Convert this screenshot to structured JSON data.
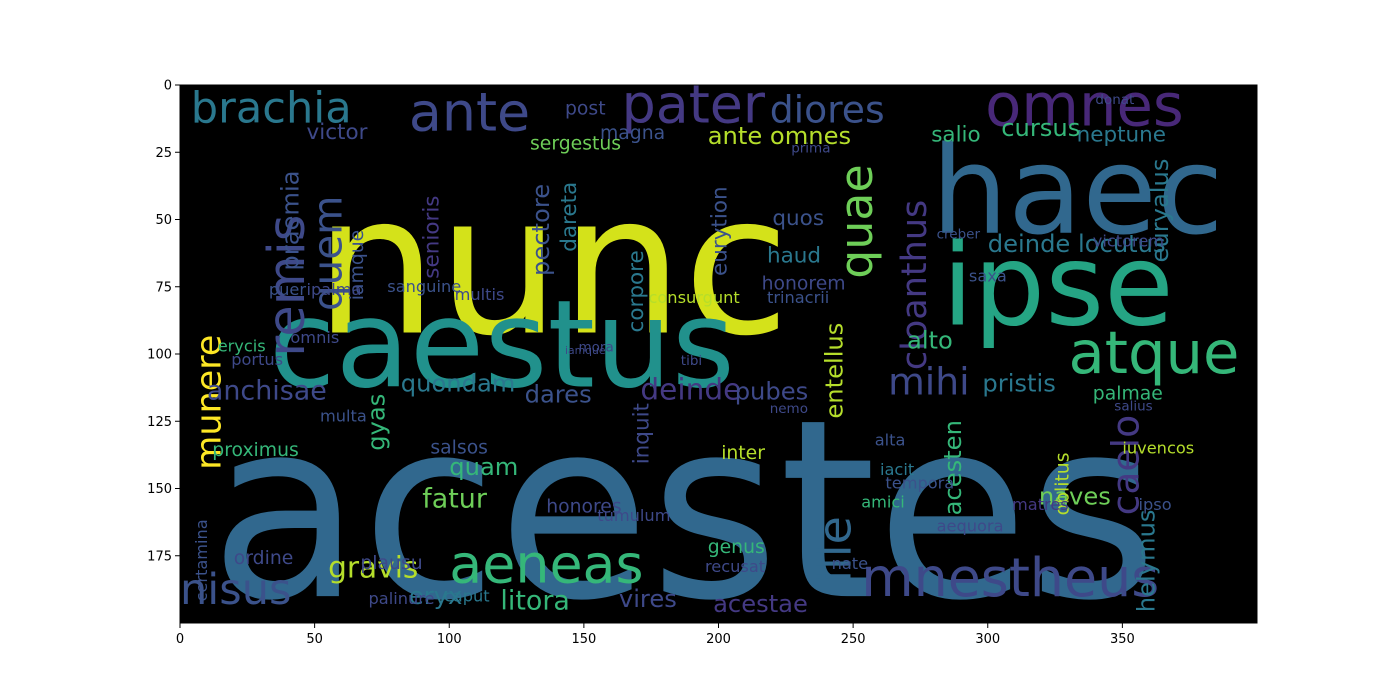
{
  "chart_data": {
    "type": "wordcloud",
    "title": "",
    "xlabel": "",
    "ylabel": "",
    "xlim": [
      0,
      400
    ],
    "ylim": [
      200,
      0
    ],
    "xticks": [
      0,
      50,
      100,
      150,
      200,
      250,
      300,
      350
    ],
    "yticks": [
      0,
      25,
      50,
      75,
      100,
      125,
      150,
      175
    ],
    "background": "#000000",
    "colormap": "viridis",
    "words": [
      {
        "text": "acestes",
        "x": 11,
        "y": 190,
        "size": 92,
        "color": "#31688e"
      },
      {
        "text": "nunc",
        "x": 50,
        "y": 92,
        "size": 72,
        "color": "#d4e21a"
      },
      {
        "text": "caestus",
        "x": 33,
        "y": 112,
        "size": 45,
        "color": "#21918c"
      },
      {
        "text": "haec",
        "x": 279,
        "y": 55,
        "size": 45,
        "color": "#31688e"
      },
      {
        "text": "ipse",
        "x": 283,
        "y": 89,
        "size": 42,
        "color": "#25a584"
      },
      {
        "text": "omnes",
        "x": 299,
        "y": 15,
        "size": 22,
        "color": "#482878"
      },
      {
        "text": "pater",
        "x": 164,
        "y": 14,
        "size": 20,
        "color": "#443983"
      },
      {
        "text": "ante",
        "x": 85,
        "y": 17,
        "size": 20,
        "color": "#3e4989"
      },
      {
        "text": "brachia",
        "x": 4,
        "y": 14,
        "size": 16,
        "color": "#2a788e"
      },
      {
        "text": "diores",
        "x": 219,
        "y": 14,
        "size": 14,
        "color": "#3b528b"
      },
      {
        "text": "atque",
        "x": 330,
        "y": 107,
        "size": 22,
        "color": "#35b779"
      },
      {
        "text": "mnestheus",
        "x": 253,
        "y": 190,
        "size": 20,
        "color": "#3e4989"
      },
      {
        "text": "aeneas",
        "x": 100,
        "y": 185,
        "size": 20,
        "color": "#35b779"
      },
      {
        "text": "nisus",
        "x": 0,
        "y": 193,
        "size": 16,
        "color": "#3b528b"
      },
      {
        "text": "mihi",
        "x": 263,
        "y": 115,
        "size": 14,
        "color": "#3e4989"
      },
      {
        "text": "quae",
        "x": 257,
        "y": 72,
        "size": 17,
        "color": "#6ece58",
        "rotate": true
      },
      {
        "text": "remis",
        "x": 46,
        "y": 101,
        "size": 19,
        "color": "#3e4989",
        "rotate": true
      },
      {
        "text": "quem",
        "x": 60,
        "y": 84,
        "size": 15,
        "color": "#3b528b",
        "rotate": true
      },
      {
        "text": "ille",
        "x": 249,
        "y": 185,
        "size": 17,
        "color": "#31688e",
        "rotate": true
      },
      {
        "text": "cloanthus",
        "x": 277,
        "y": 106,
        "size": 13,
        "color": "#443983",
        "rotate": true
      },
      {
        "text": "caelo",
        "x": 356,
        "y": 160,
        "size": 14,
        "color": "#443983",
        "rotate": true
      },
      {
        "text": "munere",
        "x": 15,
        "y": 143,
        "size": 13,
        "color": "#fde725",
        "rotate": true
      },
      {
        "text": "praemia",
        "x": 44,
        "y": 69,
        "size": 9,
        "color": "#3b528b",
        "rotate": true
      },
      {
        "text": "anchisae",
        "x": 10,
        "y": 117,
        "size": 10,
        "color": "#3e4989"
      },
      {
        "text": "quondam",
        "x": 82,
        "y": 114,
        "size": 9,
        "color": "#2a788e"
      },
      {
        "text": "deinde",
        "x": 171,
        "y": 117,
        "size": 11,
        "color": "#443983"
      },
      {
        "text": "dares",
        "x": 128,
        "y": 118,
        "size": 9,
        "color": "#3b528b"
      },
      {
        "text": "pubes",
        "x": 206,
        "y": 117,
        "size": 9,
        "color": "#3e4989"
      },
      {
        "text": "pristis",
        "x": 298,
        "y": 114,
        "size": 9,
        "color": "#2a788e"
      },
      {
        "text": "alto",
        "x": 270,
        "y": 98,
        "size": 9,
        "color": "#35b779"
      },
      {
        "text": "entellus",
        "x": 246,
        "y": 124,
        "size": 9,
        "color": "#b5de2b",
        "rotate": true
      },
      {
        "text": "deinde locutus",
        "x": 300,
        "y": 62,
        "size": 9,
        "color": "#2a788e"
      },
      {
        "text": "euryalus",
        "x": 367,
        "y": 66,
        "size": 9,
        "color": "#2a788e",
        "rotate": true
      },
      {
        "text": "neptune",
        "x": 333,
        "y": 21,
        "size": 8,
        "color": "#2a788e"
      },
      {
        "text": "cursus",
        "x": 305,
        "y": 19,
        "size": 9,
        "color": "#35b779"
      },
      {
        "text": "salio",
        "x": 279,
        "y": 21,
        "size": 8,
        "color": "#35b779"
      },
      {
        "text": "victor",
        "x": 47,
        "y": 20,
        "size": 8,
        "color": "#3e4989"
      },
      {
        "text": "ante omnes",
        "x": 196,
        "y": 22,
        "size": 9,
        "color": "#b5de2b"
      },
      {
        "text": "magna",
        "x": 156,
        "y": 20,
        "size": 7,
        "color": "#3b528b"
      },
      {
        "text": "sergestus",
        "x": 130,
        "y": 24,
        "size": 7,
        "color": "#6ece58"
      },
      {
        "text": "post",
        "x": 143,
        "y": 11,
        "size": 7,
        "color": "#3e4989"
      },
      {
        "text": "quos",
        "x": 220,
        "y": 52,
        "size": 8,
        "color": "#3b528b"
      },
      {
        "text": "haud",
        "x": 218,
        "y": 66,
        "size": 8,
        "color": "#2a788e"
      },
      {
        "text": "honorem",
        "x": 216,
        "y": 76,
        "size": 7,
        "color": "#3e4989"
      },
      {
        "text": "senioris",
        "x": 96,
        "y": 72,
        "size": 8,
        "color": "#443983",
        "rotate": true
      },
      {
        "text": "iamque",
        "x": 68,
        "y": 80,
        "size": 7,
        "color": "#3b528b",
        "rotate": true
      },
      {
        "text": "pectore",
        "x": 137,
        "y": 71,
        "size": 9,
        "color": "#3b528b",
        "rotate": true
      },
      {
        "text": "dareta",
        "x": 147,
        "y": 62,
        "size": 8,
        "color": "#2a788e",
        "rotate": true
      },
      {
        "text": "eurytion",
        "x": 203,
        "y": 71,
        "size": 8,
        "color": "#3b528b",
        "rotate": true
      },
      {
        "text": "corpore",
        "x": 172,
        "y": 92,
        "size": 8,
        "color": "#2a788e",
        "rotate": true
      },
      {
        "text": "inquit",
        "x": 174,
        "y": 141,
        "size": 8,
        "color": "#3e4989",
        "rotate": true
      },
      {
        "text": "acesten",
        "x": 290,
        "y": 160,
        "size": 9,
        "color": "#35b779",
        "rotate": true
      },
      {
        "text": "naves",
        "x": 319,
        "y": 156,
        "size": 9,
        "color": "#6ece58"
      },
      {
        "text": "gyas",
        "x": 76,
        "y": 136,
        "size": 9,
        "color": "#35b779",
        "rotate": true
      },
      {
        "text": "quam",
        "x": 100,
        "y": 145,
        "size": 9,
        "color": "#35b779"
      },
      {
        "text": "fatur",
        "x": 90,
        "y": 157,
        "size": 10,
        "color": "#6ece58"
      },
      {
        "text": "gravis",
        "x": 55,
        "y": 183,
        "size": 11,
        "color": "#b5de2b"
      },
      {
        "text": "eryx",
        "x": 85,
        "y": 193,
        "size": 9,
        "color": "#2a788e"
      },
      {
        "text": "litora",
        "x": 119,
        "y": 195,
        "size": 10,
        "color": "#35b779"
      },
      {
        "text": "vires",
        "x": 163,
        "y": 194,
        "size": 9,
        "color": "#3e4989"
      },
      {
        "text": "acestae",
        "x": 198,
        "y": 196,
        "size": 9,
        "color": "#443983"
      },
      {
        "text": "helymus",
        "x": 362,
        "y": 196,
        "size": 9,
        "color": "#2a788e",
        "rotate": true
      },
      {
        "text": "oblitus",
        "x": 330,
        "y": 160,
        "size": 7,
        "color": "#b5de2b",
        "rotate": true
      },
      {
        "text": "palmae",
        "x": 339,
        "y": 117,
        "size": 7,
        "color": "#35b779"
      },
      {
        "text": "salsos",
        "x": 93,
        "y": 137,
        "size": 7,
        "color": "#3b528b"
      },
      {
        "text": "proximus",
        "x": 12,
        "y": 138,
        "size": 7,
        "color": "#35b779"
      },
      {
        "text": "honores",
        "x": 136,
        "y": 159,
        "size": 7,
        "color": "#3e4989"
      },
      {
        "text": "inter",
        "x": 201,
        "y": 139,
        "size": 7,
        "color": "#b5de2b"
      },
      {
        "text": "iuvencos",
        "x": 350,
        "y": 137,
        "size": 6,
        "color": "#b5de2b"
      },
      {
        "text": "genus",
        "x": 196,
        "y": 174,
        "size": 7,
        "color": "#35b779"
      },
      {
        "text": "recusat",
        "x": 195,
        "y": 181,
        "size": 6,
        "color": "#3e4989"
      },
      {
        "text": "plausu",
        "x": 67,
        "y": 180,
        "size": 7,
        "color": "#3e4989"
      },
      {
        "text": "ordine",
        "x": 20,
        "y": 178,
        "size": 7,
        "color": "#3e4989"
      },
      {
        "text": "certamina",
        "x": 10,
        "y": 192,
        "size": 6,
        "color": "#3b528b",
        "rotate": true
      },
      {
        "text": "palinure",
        "x": 70,
        "y": 193,
        "size": 6,
        "color": "#3e4989"
      },
      {
        "text": "caput",
        "x": 98,
        "y": 192,
        "size": 6,
        "color": "#2a788e"
      },
      {
        "text": "amici",
        "x": 253,
        "y": 157,
        "size": 6,
        "color": "#35b779"
      },
      {
        "text": "alta",
        "x": 258,
        "y": 134,
        "size": 6,
        "color": "#3b528b"
      },
      {
        "text": "iacit",
        "x": 260,
        "y": 145,
        "size": 6,
        "color": "#2a788e"
      },
      {
        "text": "tempora",
        "x": 262,
        "y": 150,
        "size": 6,
        "color": "#3b528b"
      },
      {
        "text": "aequora",
        "x": 281,
        "y": 166,
        "size": 6,
        "color": "#3e4989"
      },
      {
        "text": "matres",
        "x": 309,
        "y": 158,
        "size": 6,
        "color": "#443983"
      },
      {
        "text": "ipso",
        "x": 356,
        "y": 158,
        "size": 6,
        "color": "#3b528b"
      },
      {
        "text": "nate",
        "x": 242,
        "y": 180,
        "size": 6,
        "color": "#3b528b"
      },
      {
        "text": "tumulum",
        "x": 155,
        "y": 162,
        "size": 6,
        "color": "#3e4989"
      },
      {
        "text": "consurgunt",
        "x": 174,
        "y": 81,
        "size": 6,
        "color": "#b5de2b"
      },
      {
        "text": "trinacrii",
        "x": 218,
        "y": 81,
        "size": 6,
        "color": "#3b528b"
      },
      {
        "text": "sanguine",
        "x": 77,
        "y": 77,
        "size": 6,
        "color": "#3b528b"
      },
      {
        "text": "puer",
        "x": 33,
        "y": 78,
        "size": 6,
        "color": "#3b528b"
      },
      {
        "text": "ipalma",
        "x": 47,
        "y": 78,
        "size": 6,
        "color": "#3e4989"
      },
      {
        "text": "erycis",
        "x": 14,
        "y": 99,
        "size": 6,
        "color": "#35b779"
      },
      {
        "text": "portus",
        "x": 19,
        "y": 104,
        "size": 6,
        "color": "#3e4989"
      },
      {
        "text": "omnis",
        "x": 41,
        "y": 96,
        "size": 6,
        "color": "#3e4989"
      },
      {
        "text": "multa",
        "x": 52,
        "y": 125,
        "size": 6,
        "color": "#3b528b"
      },
      {
        "text": "multis",
        "x": 102,
        "y": 80,
        "size": 6,
        "color": "#3e4989"
      },
      {
        "text": "saxa",
        "x": 293,
        "y": 73,
        "size": 6,
        "color": "#3b528b"
      },
      {
        "text": "victorem",
        "x": 339,
        "y": 60,
        "size": 6,
        "color": "#3e4989"
      },
      {
        "text": "salius",
        "x": 347,
        "y": 121,
        "size": 5,
        "color": "#3e4989"
      },
      {
        "text": "donat",
        "x": 340,
        "y": 7,
        "size": 5,
        "color": "#3e4989"
      },
      {
        "text": "prima",
        "x": 227,
        "y": 25,
        "size": 5,
        "color": "#3e4989"
      },
      {
        "text": "creber",
        "x": 281,
        "y": 57,
        "size": 5,
        "color": "#3b528b"
      },
      {
        "text": "nemo",
        "x": 219,
        "y": 122,
        "size": 5,
        "color": "#3e4989"
      },
      {
        "text": "tibi",
        "x": 186,
        "y": 104,
        "size": 5,
        "color": "#3e4989"
      },
      {
        "text": "mora",
        "x": 148,
        "y": 99,
        "size": 5,
        "color": "#3e4989"
      },
      {
        "text": "iamque",
        "x": 143,
        "y": 100,
        "size": 4,
        "color": "#3e4989"
      }
    ]
  }
}
